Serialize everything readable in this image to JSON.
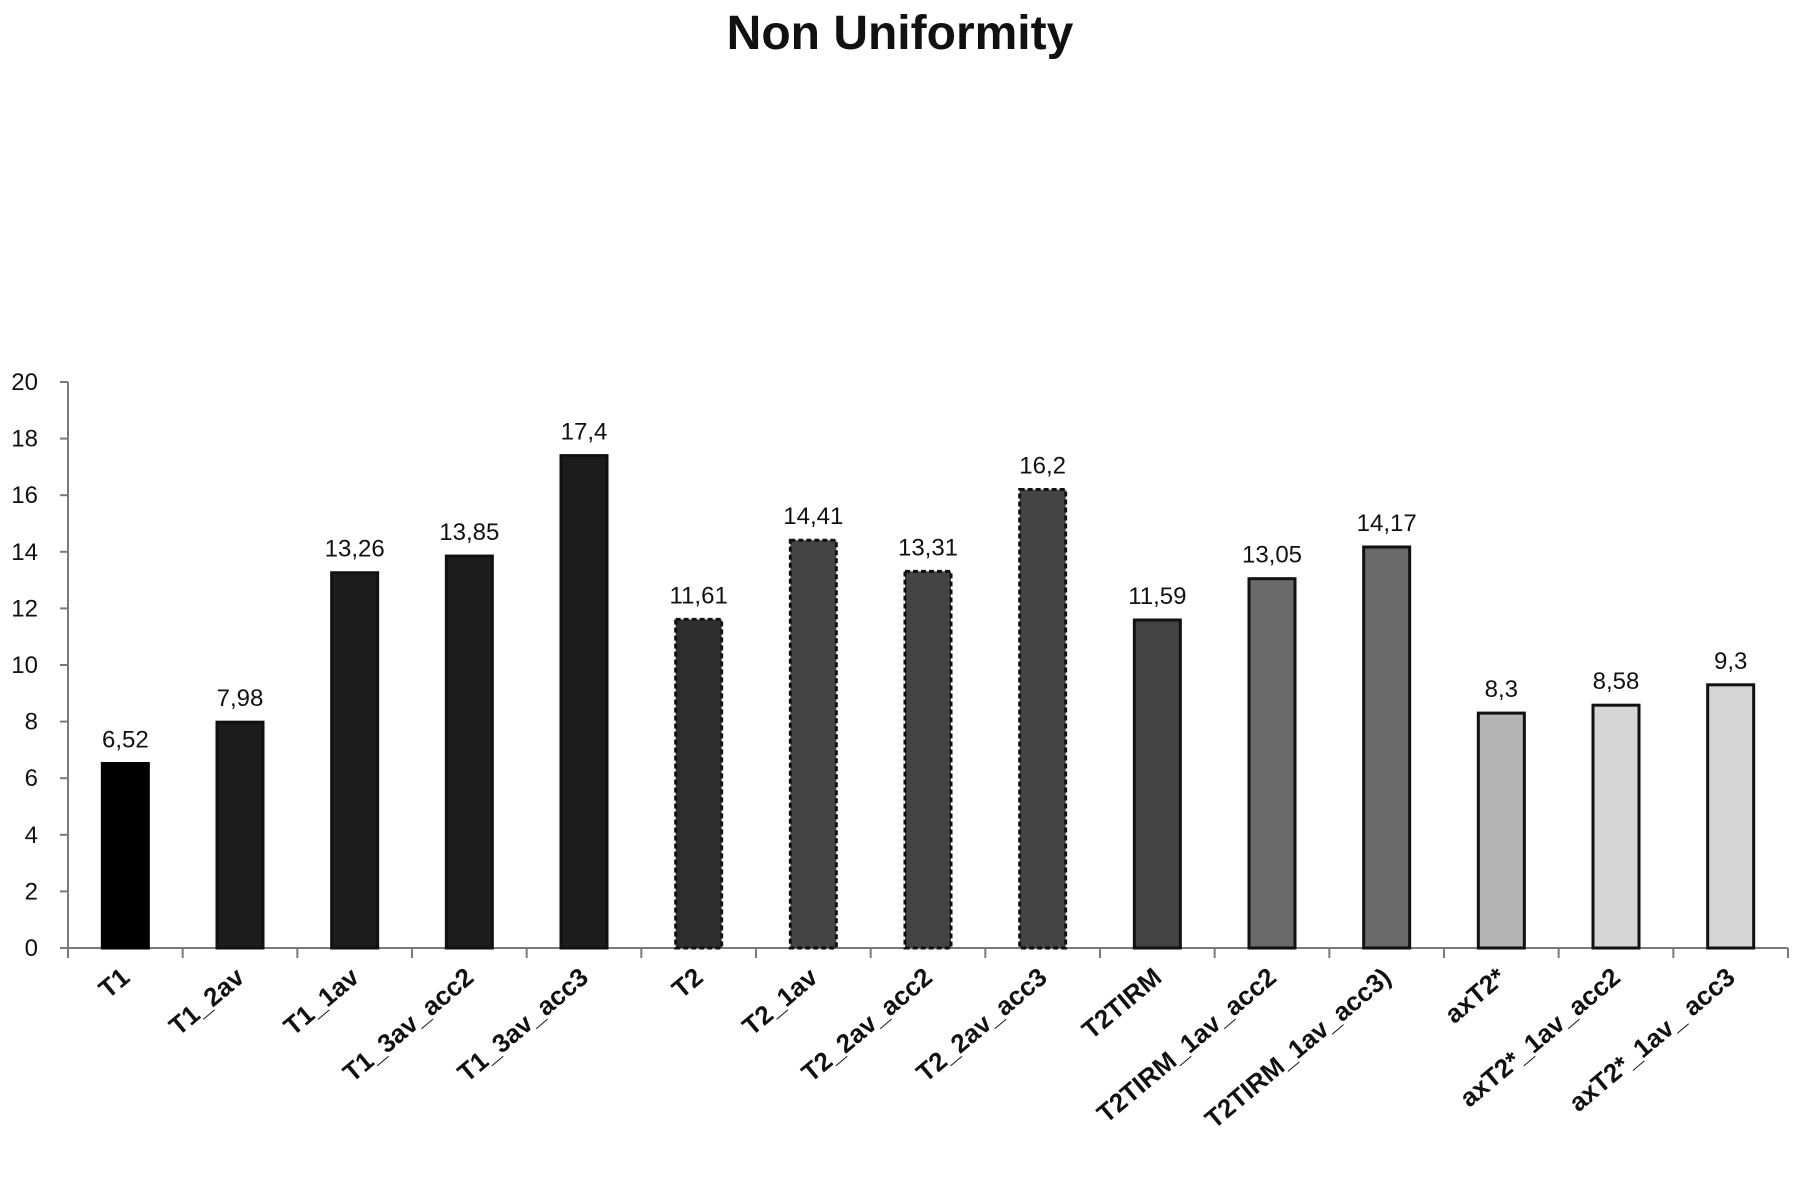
{
  "chart_data": {
    "type": "bar",
    "title": "Non Uniformity",
    "xlabel": "",
    "ylabel": "",
    "ylim": [
      0,
      20
    ],
    "yticks": [
      0,
      2,
      4,
      6,
      8,
      10,
      12,
      14,
      16,
      18,
      20
    ],
    "grid": false,
    "legend": "none",
    "categories": [
      "T1",
      "T1_2av",
      "T1_1av",
      "T1_3av_acc2",
      "T1_3av_acc3",
      "T2",
      "T2_1av",
      "T2_2av_acc2",
      "T2_2av_acc3",
      "T2TIRM",
      "T2TIRM_1av_acc2",
      "T2TIRM_1av_acc3)",
      "axT2*",
      "axT2*_1av_acc2",
      "axT2*_1av_ acc3"
    ],
    "values": [
      6.52,
      7.98,
      13.26,
      13.85,
      17.4,
      11.61,
      14.41,
      13.31,
      16.2,
      11.59,
      13.05,
      14.17,
      8.3,
      8.58,
      9.3
    ],
    "data_labels": [
      "6,52",
      "7,98",
      "13,26",
      "13,85",
      "17,4",
      "11,61",
      "14,41",
      "13,31",
      "16,2",
      "11,59",
      "13,05",
      "14,17",
      "8,3",
      "8,58",
      "9,3"
    ],
    "bar_colors": [
      "#000000",
      "#1c1c1c",
      "#1c1c1c",
      "#1c1c1c",
      "#1c1c1c",
      "#2e2e2e",
      "#444444",
      "#444444",
      "#444444",
      "#444444",
      "#6a6a6a",
      "#6a6a6a",
      "#b4b4b4",
      "#d6d6d6",
      "#d6d6d6"
    ],
    "bar_dashed": [
      false,
      false,
      false,
      false,
      false,
      true,
      true,
      true,
      true,
      false,
      false,
      false,
      false,
      false,
      false
    ]
  }
}
